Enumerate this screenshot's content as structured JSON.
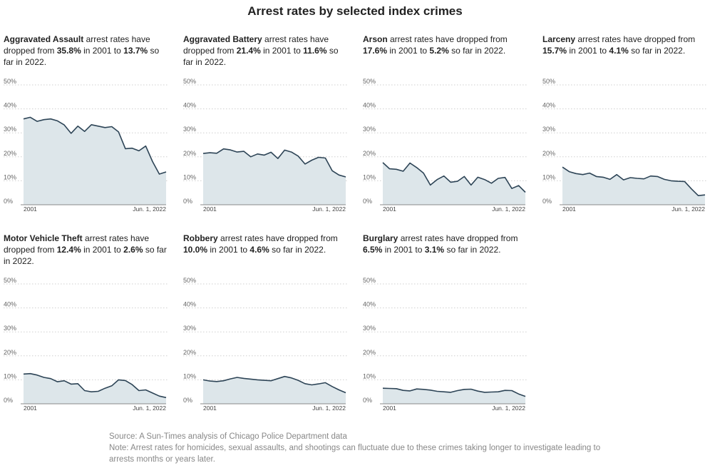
{
  "title": "Arrest rates by selected index crimes",
  "source": "Source: A Sun-Times analysis of Chicago Police Department data",
  "note": "Note: Arrest rates for homicides, sexual assaults, and shootings can fluctuate due to these crimes taking longer to investigate leading to arrests months or years later.",
  "y_ticks": [
    "0%",
    "10%",
    "20%",
    "30%",
    "40%",
    "50%"
  ],
  "x_labels": [
    "2001",
    "Jun. 1, 2022"
  ],
  "chart_data": [
    {
      "type": "area",
      "crime": "Aggravated Assault",
      "text_mid1": " arrest rates have dropped from ",
      "from": "35.8%",
      "text_mid2": " in 2001 to ",
      "to": "13.7%",
      "text_end": " so far in 2022.",
      "ylim": [
        0,
        50
      ],
      "x": [
        2001,
        2002,
        2003,
        2004,
        2005,
        2006,
        2007,
        2008,
        2009,
        2010,
        2011,
        2012,
        2013,
        2014,
        2015,
        2016,
        2017,
        2018,
        2019,
        2020,
        2021,
        2022
      ],
      "values": [
        35.8,
        36.5,
        34.8,
        35.5,
        35.8,
        35.0,
        33.3,
        29.8,
        32.8,
        30.6,
        33.4,
        32.8,
        32.2,
        32.6,
        30.4,
        23.4,
        23.6,
        22.5,
        24.5,
        18.0,
        12.8,
        13.7
      ]
    },
    {
      "type": "area",
      "crime": "Aggravated Battery",
      "text_mid1": " arrest rates have dropped from ",
      "from": "21.4%",
      "text_mid2": " in 2001 to ",
      "to": "11.6%",
      "text_end": " so far in 2022.",
      "ylim": [
        0,
        50
      ],
      "x": [
        2001,
        2002,
        2003,
        2004,
        2005,
        2006,
        2007,
        2008,
        2009,
        2010,
        2011,
        2012,
        2013,
        2014,
        2015,
        2016,
        2017,
        2018,
        2019,
        2020,
        2021,
        2022
      ],
      "values": [
        21.4,
        21.7,
        21.5,
        23.3,
        22.9,
        22.0,
        22.3,
        20.0,
        21.2,
        20.7,
        21.9,
        19.3,
        22.8,
        22.0,
        20.3,
        17.0,
        18.6,
        19.8,
        19.5,
        14.2,
        12.4,
        11.6
      ]
    },
    {
      "type": "area",
      "crime": "Arson",
      "text_mid1": " arrest rates have dropped from ",
      "from": "17.6%",
      "text_mid2": " in 2001 to ",
      "to": "5.2%",
      "text_end": " so far in 2022.",
      "ylim": [
        0,
        50
      ],
      "x": [
        2001,
        2002,
        2003,
        2004,
        2005,
        2006,
        2007,
        2008,
        2009,
        2010,
        2011,
        2012,
        2013,
        2014,
        2015,
        2016,
        2017,
        2018,
        2019,
        2020,
        2021,
        2022
      ],
      "values": [
        17.6,
        15.0,
        14.8,
        14.0,
        17.4,
        15.5,
        13.2,
        8.2,
        10.5,
        12.0,
        9.4,
        9.8,
        11.8,
        8.2,
        11.5,
        10.5,
        9.0,
        11.0,
        11.4,
        6.8,
        8.0,
        5.2
      ]
    },
    {
      "type": "area",
      "crime": "Larceny",
      "text_mid1": " arrest rates have dropped from ",
      "from": "15.7%",
      "text_mid2": " in 2001 to ",
      "to": "4.1%",
      "text_end": " so far in 2022.",
      "ylim": [
        0,
        50
      ],
      "x": [
        2001,
        2002,
        2003,
        2004,
        2005,
        2006,
        2007,
        2008,
        2009,
        2010,
        2011,
        2012,
        2013,
        2014,
        2015,
        2016,
        2017,
        2018,
        2019,
        2020,
        2021,
        2022
      ],
      "values": [
        15.7,
        13.8,
        13.0,
        12.6,
        13.2,
        11.8,
        11.5,
        10.6,
        12.6,
        10.4,
        11.3,
        11.0,
        10.8,
        12.0,
        11.8,
        10.6,
        10.0,
        9.8,
        9.7,
        6.6,
        3.8,
        4.1
      ]
    },
    {
      "type": "area",
      "crime": "Motor Vehicle Theft",
      "text_mid1": " arrest rates have dropped from ",
      "from": "12.4%",
      "text_mid2": " in 2001 to ",
      "to": "2.6%",
      "text_end": " so far in 2022.",
      "ylim": [
        0,
        50
      ],
      "x": [
        2001,
        2002,
        2003,
        2004,
        2005,
        2006,
        2007,
        2008,
        2009,
        2010,
        2011,
        2012,
        2013,
        2014,
        2015,
        2016,
        2017,
        2018,
        2019,
        2020,
        2021,
        2022
      ],
      "values": [
        12.4,
        12.6,
        12.0,
        11.0,
        10.5,
        9.2,
        9.6,
        8.2,
        8.4,
        5.5,
        5.0,
        5.2,
        6.5,
        7.5,
        10.0,
        9.7,
        8.0,
        5.5,
        5.8,
        4.5,
        3.2,
        2.6
      ]
    },
    {
      "type": "area",
      "crime": "Robbery",
      "text_mid1": " arrest rates have dropped from ",
      "from": "10.0%",
      "text_mid2": " in 2001 to ",
      "to": "4.6%",
      "text_end": " so far in 2022.",
      "ylim": [
        0,
        50
      ],
      "x": [
        2001,
        2002,
        2003,
        2004,
        2005,
        2006,
        2007,
        2008,
        2009,
        2010,
        2011,
        2012,
        2013,
        2014,
        2015,
        2016,
        2017,
        2018,
        2019,
        2020,
        2021,
        2022
      ],
      "values": [
        10.0,
        9.5,
        9.3,
        9.6,
        10.4,
        11.0,
        10.6,
        10.3,
        10.0,
        9.8,
        9.6,
        10.5,
        11.4,
        10.8,
        9.8,
        8.4,
        7.9,
        8.3,
        8.8,
        7.2,
        5.8,
        4.6
      ]
    },
    {
      "type": "area",
      "crime": "Burglary",
      "text_mid1": " arrest rates have dropped from ",
      "from": "6.5%",
      "text_mid2": " in 2001 to ",
      "to": "3.1%",
      "text_end": " so far in 2022.",
      "ylim": [
        0,
        50
      ],
      "x": [
        2001,
        2002,
        2003,
        2004,
        2005,
        2006,
        2007,
        2008,
        2009,
        2010,
        2011,
        2012,
        2013,
        2014,
        2015,
        2016,
        2017,
        2018,
        2019,
        2020,
        2021,
        2022
      ],
      "values": [
        6.5,
        6.4,
        6.3,
        5.6,
        5.4,
        6.2,
        6.0,
        5.7,
        5.2,
        5.0,
        4.8,
        5.5,
        6.0,
        6.1,
        5.3,
        4.8,
        4.9,
        5.0,
        5.6,
        5.5,
        4.1,
        3.1
      ]
    }
  ]
}
